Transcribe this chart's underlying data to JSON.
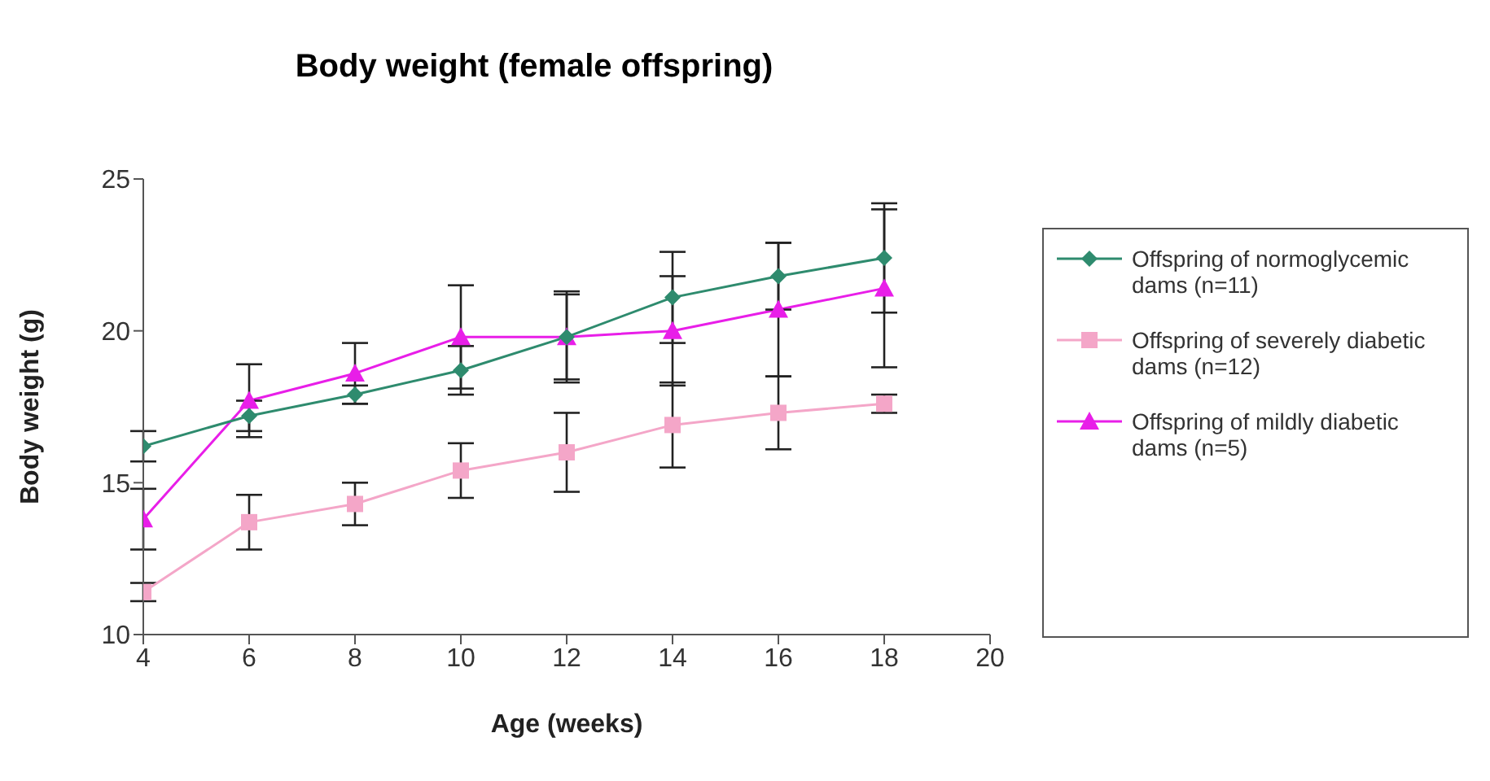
{
  "chart_data": {
    "type": "line",
    "title": "Body weight (female offspring)",
    "xlabel": "Age (weeks)",
    "ylabel": "Body weight (g)",
    "x": [
      4,
      6,
      8,
      10,
      12,
      14,
      16,
      18
    ],
    "series": [
      {
        "name": "Offspring of normoglycemic dams (n=11)",
        "color": "#2e8b6e",
        "marker": "diamond",
        "values": [
          16.2,
          17.2,
          17.9,
          18.7,
          19.8,
          21.1,
          21.8,
          22.4
        ],
        "errors": [
          0.5,
          0.5,
          0.3,
          0.8,
          1.4,
          1.5,
          1.1,
          1.8
        ]
      },
      {
        "name": "Offspring of severely diabetic dams (n=12)",
        "color": "#f4a6c8",
        "marker": "square",
        "values": [
          11.4,
          13.7,
          14.3,
          15.4,
          16.0,
          16.9,
          17.3,
          17.6
        ],
        "errors": [
          0.3,
          0.9,
          0.7,
          0.9,
          1.3,
          1.4,
          1.2,
          0.3
        ]
      },
      {
        "name": "Offspring of mildly diabetic dams (n=5)",
        "color": "#e81ee8",
        "marker": "triangle",
        "values": [
          13.8,
          17.7,
          18.6,
          19.8,
          19.8,
          20.0,
          20.7,
          21.4
        ],
        "errors": [
          1.0,
          1.2,
          1.0,
          1.7,
          1.5,
          1.8,
          2.2,
          2.6
        ]
      }
    ],
    "xlim": [
      4,
      20
    ],
    "xticks": [
      4,
      6,
      8,
      10,
      12,
      14,
      16,
      18,
      20
    ],
    "ylim": [
      10,
      25
    ],
    "yticks": [
      10,
      15,
      20,
      25
    ],
    "grid": false,
    "legend": "right"
  }
}
